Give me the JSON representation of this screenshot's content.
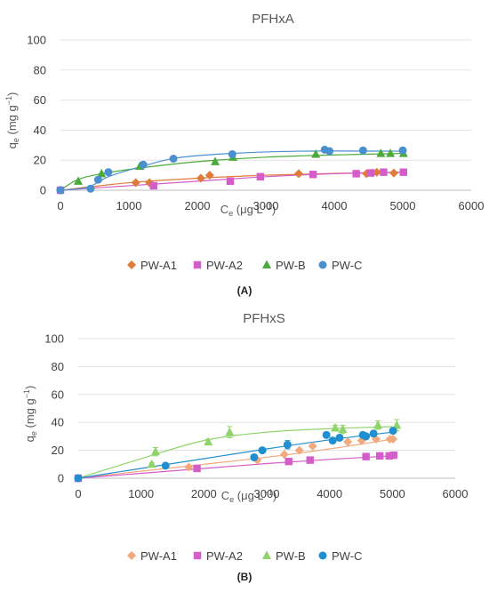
{
  "chart_data": [
    {
      "type": "scatter",
      "panel_label": "(A)",
      "title": "PFHxA",
      "xlabel_base": "C",
      "xlabel_sub": "e",
      "xlabel_unit": " (μg L",
      "xlabel_sup": "−1",
      "xlabel_close": ")",
      "ylabel_base": "q",
      "ylabel_sub": "e",
      "ylabel_unit": " (mg g",
      "ylabel_sup": "−1",
      "ylabel_close": ")",
      "xlim": [
        0,
        6000
      ],
      "ylim": [
        0,
        100
      ],
      "xticks": [
        0,
        1000,
        2000,
        3000,
        4000,
        5000,
        6000
      ],
      "yticks": [
        0,
        20,
        40,
        60,
        80,
        100
      ],
      "grid": "horizontal",
      "legend_position": "bottom",
      "series": [
        {
          "name": "PW-A1",
          "marker": "diamond",
          "color": "#E07B39",
          "x": [
            0,
            1100,
            1300,
            2050,
            2180,
            3480,
            4470,
            4560,
            4620,
            4870
          ],
          "y": [
            0,
            5,
            5,
            8,
            10,
            11,
            11,
            11.5,
            12,
            11.5
          ],
          "fit_x": [
            0,
            1000,
            2000,
            3000,
            4000,
            5000
          ],
          "fit_y": [
            0,
            5,
            8,
            10,
            11.2,
            12
          ]
        },
        {
          "name": "PW-A2",
          "marker": "square",
          "color": "#D45DC9",
          "x": [
            0,
            1360,
            2480,
            2920,
            3690,
            4320,
            4530,
            4720,
            5010
          ],
          "y": [
            0,
            3,
            6,
            9,
            10.5,
            11,
            11.5,
            12,
            12
          ],
          "fit_x": [
            0,
            1000,
            2000,
            3000,
            4000,
            5000
          ],
          "fit_y": [
            0,
            3,
            6,
            9,
            11,
            12
          ]
        },
        {
          "name": "PW-B",
          "marker": "triangle",
          "color": "#4BAA3A",
          "x": [
            260,
            600,
            1160,
            2260,
            2520,
            3730,
            4680,
            4820,
            5010
          ],
          "y": [
            6,
            11,
            16,
            19,
            22,
            24,
            24.5,
            24.5,
            24.5
          ],
          "fit_x": [
            0,
            250,
            600,
            1200,
            2000,
            3000,
            4000,
            5000
          ],
          "fit_y": [
            0,
            7,
            11,
            15,
            19,
            22,
            23.5,
            24.5
          ]
        },
        {
          "name": "PW-C",
          "marker": "circle",
          "color": "#4A90CF",
          "x": [
            0,
            440,
            550,
            700,
            1210,
            1650,
            2510,
            3860,
            3930,
            4420,
            5000
          ],
          "y": [
            0,
            1,
            7,
            12,
            17,
            21,
            24,
            27,
            26,
            26.5,
            26.5
          ],
          "fit_x": [
            0,
            400,
            700,
            1200,
            1700,
            2500,
            3500,
            5000
          ],
          "fit_y": [
            0,
            2,
            9,
            16,
            21.5,
            24.5,
            26,
            26
          ]
        }
      ]
    },
    {
      "type": "scatter",
      "panel_label": "(B)",
      "title": "PFHxS",
      "xlabel_base": "C",
      "xlabel_sub": "e",
      "xlabel_unit": " (μg L",
      "xlabel_sup": "−1",
      "xlabel_close": ")",
      "ylabel_base": "q",
      "ylabel_sub": "e",
      "ylabel_unit": " (mg g",
      "ylabel_sup": "−1",
      "ylabel_close": ")",
      "xlim": [
        0,
        6000
      ],
      "ylim": [
        0,
        100
      ],
      "xticks": [
        0,
        1000,
        2000,
        3000,
        4000,
        5000,
        6000
      ],
      "yticks": [
        0,
        20,
        40,
        60,
        80,
        100
      ],
      "grid": "horizontal",
      "legend_position": "bottom",
      "series": [
        {
          "name": "PW-A1",
          "marker": "diamond",
          "color": "#F2A97E",
          "x": [
            0,
            1760,
            2850,
            3280,
            3520,
            3730,
            4290,
            4510,
            4740,
            4960,
            5010
          ],
          "y": [
            0,
            8,
            13,
            17,
            20,
            23,
            26,
            27,
            28,
            28,
            28
          ],
          "fit_x": [
            0,
            1000,
            2000,
            3000,
            4000,
            5000
          ],
          "fit_y": [
            0,
            5,
            10,
            15,
            21,
            28
          ]
        },
        {
          "name": "PW-A2",
          "marker": "square",
          "color": "#D45DC9",
          "x": [
            0,
            1890,
            3350,
            3690,
            4580,
            4800,
            4950,
            5020
          ],
          "y": [
            0,
            7,
            12,
            13,
            15.5,
            16,
            16,
            16.5
          ],
          "fit_x": [
            0,
            1000,
            2000,
            3000,
            4000,
            5000
          ],
          "fit_y": [
            0,
            3.5,
            7,
            10.5,
            13.5,
            16
          ]
        },
        {
          "name": "PW-B",
          "marker": "triangle",
          "color": "#8FD46A",
          "x": [
            1170,
            1230,
            2070,
            2410,
            4090,
            4210,
            4770,
            5070
          ],
          "y": [
            10,
            19,
            26,
            33,
            36,
            35,
            38,
            38
          ],
          "yerr": [
            1,
            3,
            2,
            4,
            2,
            3,
            3,
            4
          ],
          "fit_x": [
            0,
            1000,
            2000,
            3000,
            4000,
            5000
          ],
          "fit_y": [
            0,
            14,
            27,
            33,
            35.5,
            37
          ]
        },
        {
          "name": "PW-C",
          "marker": "circle",
          "color": "#1F8FCF",
          "x": [
            0,
            1390,
            2800,
            2930,
            3330,
            3950,
            4050,
            4160,
            4530,
            4580,
            4700,
            5010
          ],
          "y": [
            0,
            9,
            15,
            20,
            24,
            31,
            27,
            29,
            31,
            30,
            32,
            34
          ],
          "yerr": [
            0,
            1,
            2,
            1,
            3,
            2,
            2,
            2,
            2,
            2,
            2,
            2
          ],
          "fit_x": [
            0,
            1000,
            2000,
            3000,
            4000,
            5000
          ],
          "fit_y": [
            0,
            7,
            14,
            21,
            27.5,
            33
          ]
        }
      ]
    }
  ]
}
